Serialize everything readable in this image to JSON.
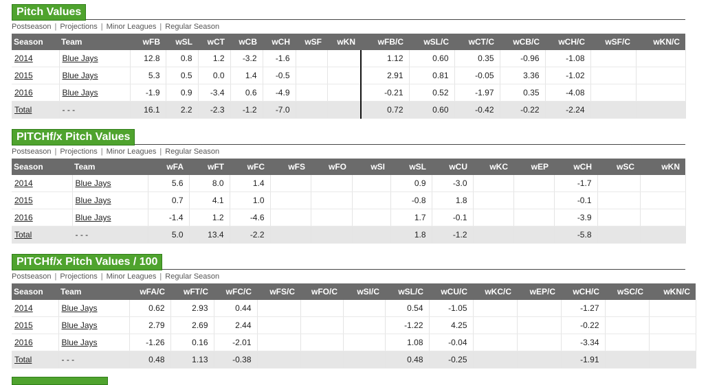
{
  "subnav": [
    "Postseason",
    "Projections",
    "Minor Leagues",
    "Regular Season"
  ],
  "pitch_values": {
    "title": "Pitch Values",
    "headers": [
      "Season",
      "Team",
      "wFB",
      "wSL",
      "wCT",
      "wCB",
      "wCH",
      "wSF",
      "wKN",
      "wFB/C",
      "wSL/C",
      "wCT/C",
      "wCB/C",
      "wCH/C",
      "wSF/C",
      "wKN/C"
    ],
    "rows": [
      [
        "2014",
        "Blue Jays",
        "12.8",
        "0.8",
        "1.2",
        "-3.2",
        "-1.6",
        "",
        "",
        "1.12",
        "0.60",
        "0.35",
        "-0.96",
        "-1.08",
        "",
        ""
      ],
      [
        "2015",
        "Blue Jays",
        "5.3",
        "0.5",
        "0.0",
        "1.4",
        "-0.5",
        "",
        "",
        "2.91",
        "0.81",
        "-0.05",
        "3.36",
        "-1.02",
        "",
        ""
      ],
      [
        "2016",
        "Blue Jays",
        "-1.9",
        "0.9",
        "-3.4",
        "0.6",
        "-4.9",
        "",
        "",
        "-0.21",
        "0.52",
        "-1.97",
        "0.35",
        "-4.08",
        "",
        ""
      ],
      [
        "Total",
        "- - -",
        "16.1",
        "2.2",
        "-2.3",
        "-1.2",
        "-7.0",
        "",
        "",
        "0.72",
        "0.60",
        "-0.42",
        "-0.22",
        "-2.24",
        "",
        ""
      ]
    ]
  },
  "pitchfx_values": {
    "title": "PITCHf/x Pitch Values",
    "headers": [
      "Season",
      "Team",
      "wFA",
      "wFT",
      "wFC",
      "wFS",
      "wFO",
      "wSI",
      "wSL",
      "wCU",
      "wKC",
      "wEP",
      "wCH",
      "wSC",
      "wKN"
    ],
    "rows": [
      [
        "2014",
        "Blue Jays",
        "5.6",
        "8.0",
        "1.4",
        "",
        "",
        "",
        "0.9",
        "-3.0",
        "",
        "",
        "-1.7",
        "",
        ""
      ],
      [
        "2015",
        "Blue Jays",
        "0.7",
        "4.1",
        "1.0",
        "",
        "",
        "",
        "-0.8",
        "1.8",
        "",
        "",
        "-0.1",
        "",
        ""
      ],
      [
        "2016",
        "Blue Jays",
        "-1.4",
        "1.2",
        "-4.6",
        "",
        "",
        "",
        "1.7",
        "-0.1",
        "",
        "",
        "-3.9",
        "",
        ""
      ],
      [
        "Total",
        "- - -",
        "5.0",
        "13.4",
        "-2.2",
        "",
        "",
        "",
        "1.8",
        "-1.2",
        "",
        "",
        "-5.8",
        "",
        ""
      ]
    ]
  },
  "pitchfx_per100": {
    "title": "PITCHf/x Pitch Values / 100",
    "headers": [
      "Season",
      "Team",
      "wFA/C",
      "wFT/C",
      "wFC/C",
      "wFS/C",
      "wFO/C",
      "wSI/C",
      "wSL/C",
      "wCU/C",
      "wKC/C",
      "wEP/C",
      "wCH/C",
      "wSC/C",
      "wKN/C"
    ],
    "rows": [
      [
        "2014",
        "Blue Jays",
        "0.62",
        "2.93",
        "0.44",
        "",
        "",
        "",
        "0.54",
        "-1.05",
        "",
        "",
        "-1.27",
        "",
        ""
      ],
      [
        "2015",
        "Blue Jays",
        "2.79",
        "2.69",
        "2.44",
        "",
        "",
        "",
        "-1.22",
        "4.25",
        "",
        "",
        "-0.22",
        "",
        ""
      ],
      [
        "2016",
        "Blue Jays",
        "-1.26",
        "0.16",
        "-2.01",
        "",
        "",
        "",
        "1.08",
        "-0.04",
        "",
        "",
        "-3.34",
        "",
        ""
      ],
      [
        "Total",
        "- - -",
        "0.48",
        "1.13",
        "-0.38",
        "",
        "",
        "",
        "0.48",
        "-0.25",
        "",
        "",
        "-1.91",
        "",
        ""
      ]
    ]
  }
}
